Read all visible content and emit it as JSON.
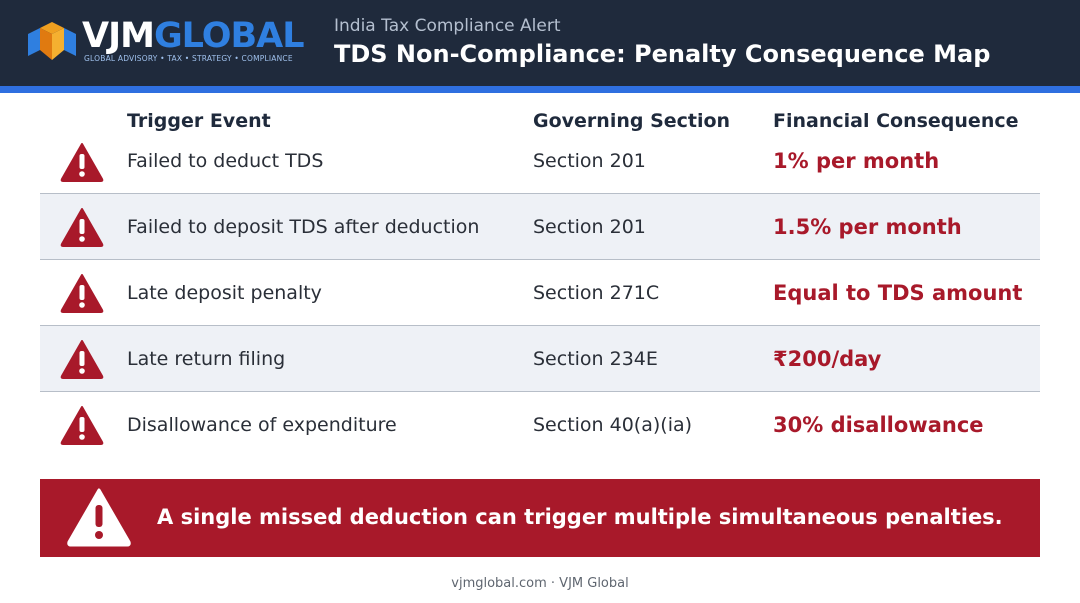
{
  "brand": {
    "logo_text_part1": "VJM",
    "logo_text_part2": "GLOBAL",
    "tagline": "GLOBAL ADVISORY • TAX • STRATEGY • COMPLIANCE"
  },
  "header": {
    "subtitle": "India Tax Compliance Alert",
    "title": "TDS Non-Compliance: Penalty Consequence Map"
  },
  "table": {
    "columns": [
      "Trigger Event",
      "Governing Section",
      "Financial Consequence"
    ],
    "rows": [
      {
        "trigger": "Failed to deduct TDS",
        "section": "Section 201",
        "consequence": "1% per month"
      },
      {
        "trigger": "Failed to deposit TDS after deduction",
        "section": "Section 201",
        "consequence": "1.5% per month"
      },
      {
        "trigger": "Late deposit penalty",
        "section": "Section 271C",
        "consequence": "Equal to TDS amount"
      },
      {
        "trigger": "Late return filing",
        "section": "Section 234E",
        "consequence": "₹200/day"
      },
      {
        "trigger": "Disallowance of expenditure",
        "section": "Section 40(a)(ia)",
        "consequence": "30% disallowance"
      }
    ]
  },
  "alert": {
    "text": "A single missed deduction can trigger multiple simultaneous penalties."
  },
  "footer": {
    "text": "vjmglobal.com · VJM Global"
  },
  "colors": {
    "header_bg": "#1f2a3c",
    "accent_blue": "#2f6fe0",
    "alert_red": "#a8192a",
    "alt_row_bg": "#eef1f6"
  },
  "icons": {
    "row_icon": "warning-triangle-icon",
    "alert_icon": "warning-triangle-icon",
    "logo_icon": "vjm-logo-mark-icon"
  }
}
